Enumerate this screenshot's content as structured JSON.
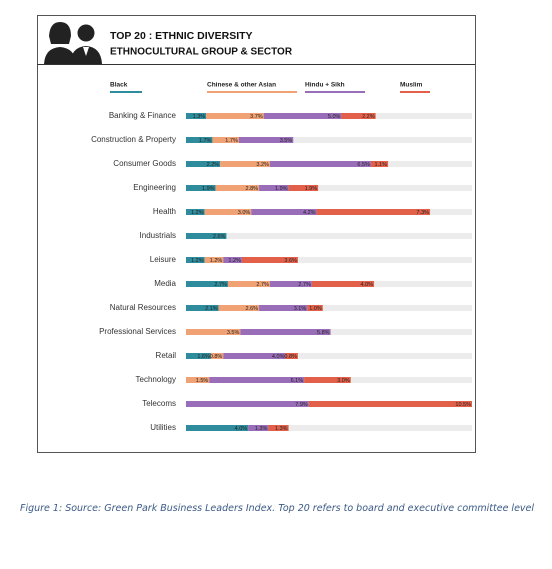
{
  "chart_data": {
    "type": "stacked-barh",
    "title": "TOP 20 : ETHNIC DIVERSITY",
    "subtitle": "ETHNOCULTURAL GROUP & SECTOR",
    "categories": [
      "Banking & Finance",
      "Construction & Property",
      "Consumer Goods",
      "Engineering",
      "Health",
      "Industrials",
      "Leisure",
      "Media",
      "Natural Resources",
      "Professional Services",
      "Retail",
      "Technology",
      "Telecoms",
      "Utilities"
    ],
    "xlim": [
      0,
      18.4
    ],
    "track_color": "#ececec",
    "series": [
      {
        "name": "Black",
        "color": "#2f8c9c",
        "values": [
          1.3,
          1.7,
          2.2,
          1.9,
          1.2,
          2.6,
          1.2,
          2.7,
          2.1,
          null,
          1.6,
          null,
          null,
          4.0
        ],
        "value_labels": [
          "1.3%",
          "1.7%",
          "2.2%",
          "1.9%",
          "1.2%",
          "2.6%",
          "1.2%",
          "2.7%",
          "2.1%",
          null,
          "1.6%",
          null,
          null,
          "4.0%"
        ]
      },
      {
        "name": "Chinese & other Asian",
        "color": "#f0a274",
        "values": [
          3.7,
          1.7,
          3.2,
          2.8,
          3.0,
          null,
          1.2,
          2.7,
          2.6,
          3.5,
          0.8,
          1.5,
          null,
          null
        ],
        "value_labels": [
          "3.7%",
          "1.7%",
          "3.2%",
          "2.8%",
          "3.0%",
          null,
          "1.2%",
          "2.7%",
          "2.6%",
          "3.5%",
          "0.8%",
          "1.5%",
          null,
          null
        ]
      },
      {
        "name": "Hindu + Sikh",
        "color": "#9a6db8",
        "values": [
          5.0,
          3.5,
          6.5,
          1.9,
          4.2,
          null,
          1.2,
          2.7,
          3.1,
          5.8,
          4.0,
          6.1,
          7.9,
          1.3
        ],
        "value_labels": [
          "5.0%",
          "3.5%",
          "6.5%",
          "1.9%",
          "4.2%",
          null,
          "1.2%",
          "2.7%",
          "3.1%",
          "5.8%",
          "4.0%",
          "6.1%",
          "7.9%",
          "1.3%"
        ]
      },
      {
        "name": "Muslim",
        "color": "#e2604a",
        "values": [
          2.2,
          null,
          1.1,
          1.9,
          7.3,
          null,
          3.6,
          4.0,
          1.0,
          null,
          0.8,
          3.0,
          10.5,
          1.3
        ],
        "value_labels": [
          "2.2%",
          null,
          "1.1%",
          "1.9%",
          "7.3%",
          null,
          "3.6%",
          "4.0%",
          "1.0%",
          null,
          "0.8%",
          "3.0%",
          "10.5%",
          "1.3%"
        ]
      }
    ]
  },
  "caption": "Figure 1: Source: Green Park Business Leaders Index. Top 20 refers to board and executive committee level"
}
